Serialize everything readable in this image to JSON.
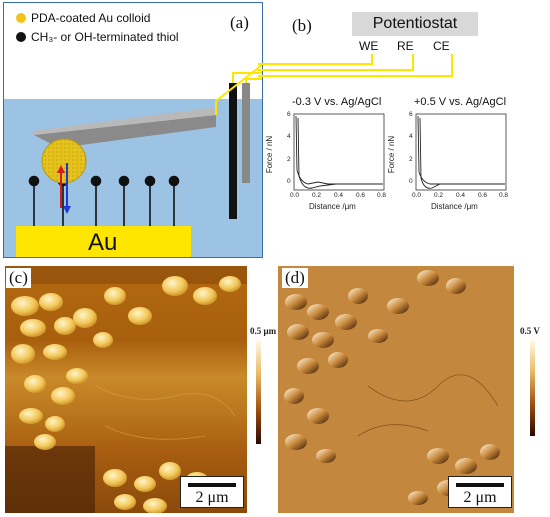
{
  "panel_a": {
    "label": "(a)",
    "legend": [
      {
        "text": "PDA-coated Au colloid",
        "color": "#f2c21b"
      },
      {
        "text": "CH₃- or OH-terminated thiol",
        "color": "#111111"
      }
    ],
    "substrate_label": "Au"
  },
  "panel_b": {
    "label": "(b)",
    "potentiostat": "Potentiostat",
    "electrodes": [
      "WE",
      "RE",
      "CE"
    ],
    "plots": [
      {
        "title": "-0.3 V vs. Ag/AgCl",
        "ylabel": "Force / nN",
        "xlabel": "Distance /μm",
        "yticks": [
          "0",
          "2",
          "4",
          "6"
        ],
        "xticks": [
          "0.0",
          "0.2",
          "0.4",
          "0.6",
          "0.8"
        ]
      },
      {
        "title": "+0.5 V vs. Ag/AgCl",
        "ylabel": "Force / nN",
        "xlabel": "Distance /μm",
        "yticks": [
          "0",
          "2",
          "4",
          "6"
        ],
        "xticks": [
          "0.0",
          "0.2",
          "0.4",
          "0.6",
          "0.8"
        ]
      }
    ]
  },
  "panel_c": {
    "label": "(c)",
    "scalebar": "2 μm",
    "colorbar_max": "0.5 μm"
  },
  "panel_d": {
    "label": "(d)",
    "scalebar": "2 μm",
    "colorbar_max": "0.5 V"
  }
}
